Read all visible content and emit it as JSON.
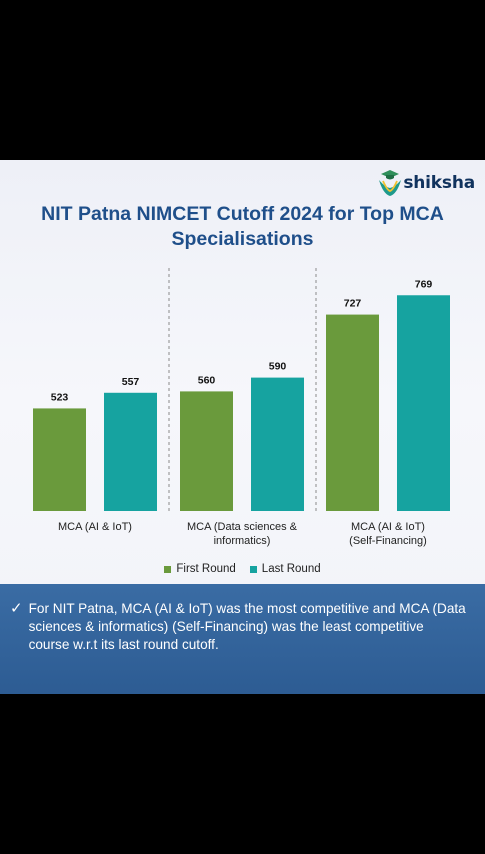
{
  "brand": {
    "name": "shiksha",
    "icon": "graduate-cap-logo-icon"
  },
  "colors": {
    "first_round": "#6a9a3c",
    "last_round": "#16a3a0",
    "title": "#1f4f8a",
    "note_bg": "#2f5f97"
  },
  "chart_data": {
    "type": "bar",
    "title": "NIT Patna NIMCET Cutoff 2024 for Top MCA Specialisations",
    "categories": [
      "MCA (AI & IoT)",
      "MCA (Data sciences & informatics)",
      "MCA (AI & IoT) (Self-Financing)"
    ],
    "series": [
      {
        "name": "First Round",
        "values": [
          523,
          560,
          727
        ]
      },
      {
        "name": "Last Round",
        "values": [
          557,
          590,
          769
        ]
      }
    ],
    "legend_position": "bottom",
    "grid": false,
    "ylim": [
      300,
      800
    ]
  },
  "note": {
    "icon": "checkmark-icon",
    "text": "For NIT Patna, MCA (AI & IoT) was the most competitive and MCA (Data sciences & informatics) (Self-Financing) was the least competitive course w.r.t its last round cutoff."
  }
}
